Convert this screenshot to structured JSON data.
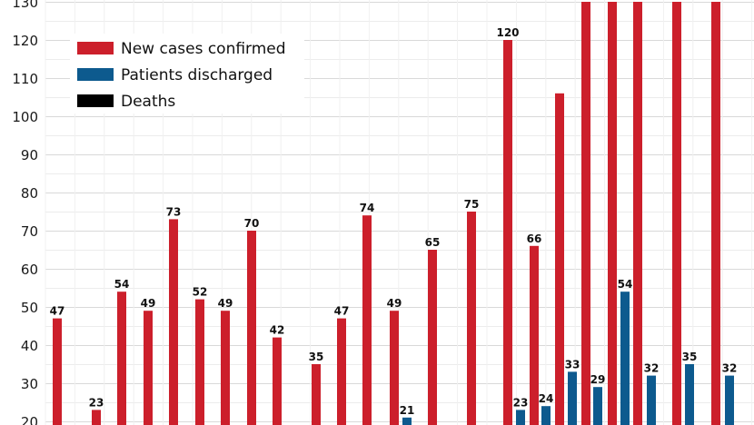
{
  "chart_data": {
    "type": "bar",
    "title": "",
    "xlabel": "",
    "ylabel": "",
    "ylim": [
      20,
      130
    ],
    "yticks": [
      20,
      30,
      40,
      50,
      60,
      70,
      80,
      90,
      100,
      110,
      120,
      130
    ],
    "grid": true,
    "legend_position": "top-left",
    "series": [
      {
        "name": "New cases confirmed",
        "color": "#cc1f2b",
        "values": [
          47,
          23,
          54,
          49,
          73,
          52,
          49,
          70,
          42,
          null,
          35,
          47,
          74,
          49,
          65,
          75,
          120,
          66,
          106,
          130,
          130,
          130,
          130,
          130
        ]
      },
      {
        "name": "Patients discharged",
        "color": "#0d5a8e",
        "values": [
          null,
          null,
          null,
          null,
          null,
          null,
          null,
          null,
          null,
          null,
          null,
          null,
          null,
          21,
          null,
          null,
          23,
          24,
          33,
          29,
          54,
          32,
          35,
          32
        ]
      },
      {
        "name": "Deaths",
        "color": "#000000",
        "values": []
      }
    ],
    "data_labels": {
      "red": [
        "47",
        "23",
        "54",
        "49",
        "73",
        "52",
        "49",
        "70",
        "42",
        "",
        "35",
        "47",
        "74",
        "49",
        "65",
        "75",
        "120",
        "66",
        "",
        "",
        "",
        "",
        "",
        ""
      ],
      "blue": [
        "",
        "",
        "",
        "",
        "",
        "",
        "",
        "",
        "",
        "",
        "",
        "",
        "",
        "21",
        "",
        "",
        "23",
        "24",
        "33",
        "29",
        "54",
        "32",
        "35",
        "32"
      ]
    }
  }
}
